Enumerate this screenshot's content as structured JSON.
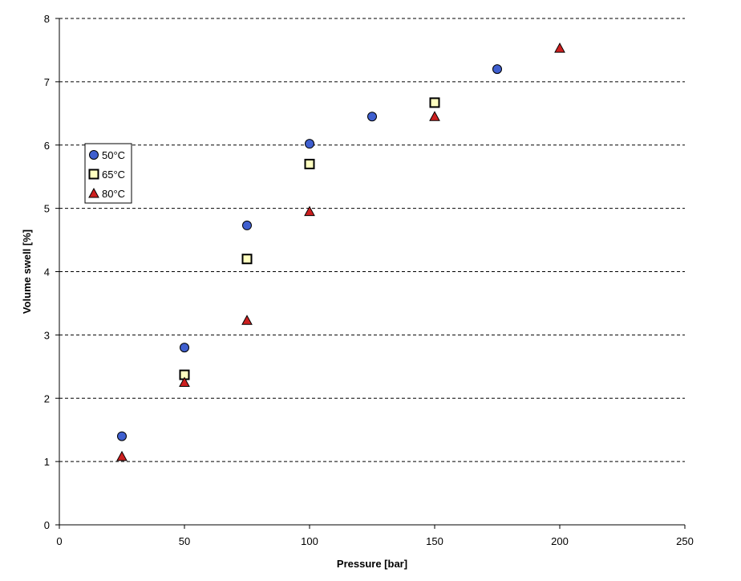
{
  "chart_data": {
    "type": "scatter",
    "xlabel": "Pressure [bar]",
    "ylabel": "Volume swell [%]",
    "xlim": [
      0,
      250
    ],
    "ylim": [
      0,
      8
    ],
    "xticks": [
      0,
      50,
      100,
      150,
      200,
      250
    ],
    "yticks": [
      0,
      1,
      2,
      3,
      4,
      5,
      6,
      7,
      8
    ],
    "grid": "horizontal-dashed",
    "legend_position": "upper-left",
    "series": [
      {
        "name": "50°C",
        "marker": "circle",
        "color": "#3f5fcf",
        "x": [
          25,
          50,
          75,
          100,
          125,
          175
        ],
        "y": [
          1.4,
          2.8,
          4.73,
          6.02,
          6.45,
          7.2
        ]
      },
      {
        "name": "65°C",
        "marker": "square",
        "color": "#ffffc0",
        "x": [
          50,
          75,
          100,
          150
        ],
        "y": [
          2.37,
          4.2,
          5.7,
          6.67
        ]
      },
      {
        "name": "80°C",
        "marker": "triangle",
        "color": "#cc1f1f",
        "x": [
          25,
          50,
          75,
          100,
          150,
          200
        ],
        "y": [
          1.08,
          2.25,
          3.23,
          4.95,
          6.45,
          7.53
        ]
      }
    ]
  }
}
